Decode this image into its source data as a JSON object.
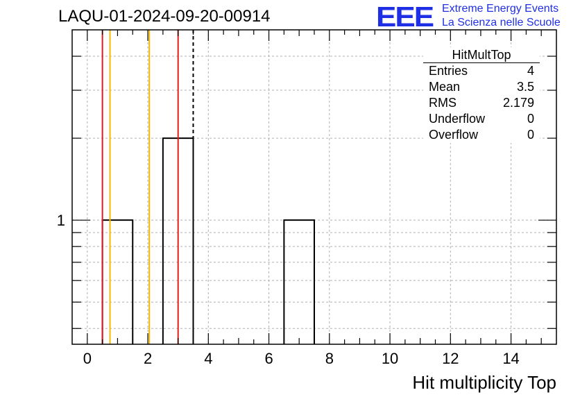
{
  "header": {
    "title": "LAQU-01-2024-09-20-00914",
    "logo_text": "EEE",
    "logo_line1": "Extreme Energy Events",
    "logo_line2": "La Scienza nelle Scuole"
  },
  "stats_box": {
    "title": "HitMultTop",
    "rows": [
      {
        "label": "Entries",
        "value": "4"
      },
      {
        "label": "Mean",
        "value": "3.5"
      },
      {
        "label": "RMS",
        "value": "2.179"
      },
      {
        "label": "Underflow",
        "value": "0"
      },
      {
        "label": "Overflow",
        "value": "0"
      }
    ]
  },
  "chart_data": {
    "type": "bar",
    "xlabel": "Hit multiplicity Top",
    "ylabel": "",
    "xlim": [
      -0.5,
      15.5
    ],
    "ylim": [
      0.35,
      5
    ],
    "yscale": "log",
    "grid": true,
    "x_ticks": [
      0,
      2,
      4,
      6,
      8,
      10,
      12,
      14
    ],
    "y_tick_labels": [
      1
    ],
    "bins": [
      {
        "low": 0.5,
        "high": 1.5,
        "count": 1
      },
      {
        "low": 2.5,
        "high": 3.5,
        "count": 2
      },
      {
        "low": 6.5,
        "high": 7.5,
        "count": 1
      }
    ],
    "vertical_lines": [
      {
        "x": 0.5,
        "color": "#e31a1c",
        "style": "solid"
      },
      {
        "x": 0.75,
        "color": "#f5b800",
        "style": "solid"
      },
      {
        "x": 2.05,
        "color": "#f5b800",
        "style": "solid"
      },
      {
        "x": 3.0,
        "color": "#e31a1c",
        "style": "solid"
      },
      {
        "x": 3.5,
        "color": "#000000",
        "style": "dashed"
      }
    ]
  }
}
